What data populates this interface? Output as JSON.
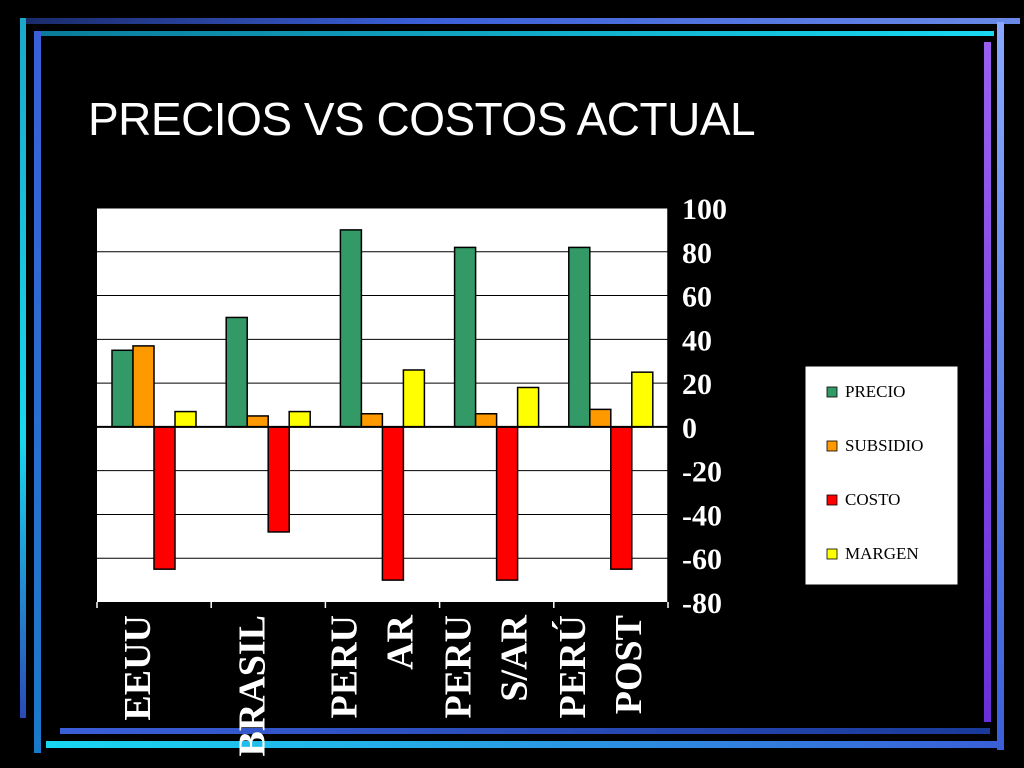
{
  "slide": {
    "title": "PRECIOS VS COSTOS ACTUAL"
  },
  "theme": {
    "background": "#000000",
    "frame_colors": [
      "#3a5fd8",
      "#18d8f0",
      "#8a4fe8",
      "#2a3a9a"
    ],
    "plot_background": "#ffffff",
    "axis_text_color": "#ffffff",
    "legend_background": "#ffffff"
  },
  "chart_data": {
    "type": "bar",
    "categories": [
      "EEUU",
      "BRASIL",
      "PERU AR",
      "PERU S/AR",
      "PERÚ POST"
    ],
    "category_labels": [
      [
        "EEUU"
      ],
      [
        "BRASIL"
      ],
      [
        "PERU",
        "AR"
      ],
      [
        "PERU",
        "S/AR"
      ],
      [
        "PERÚ",
        "POST"
      ]
    ],
    "series": [
      {
        "name": "PRECIO",
        "color": "#339966",
        "values": [
          35,
          50,
          90,
          82,
          82
        ]
      },
      {
        "name": "SUBSIDIO",
        "color": "#ff9900",
        "values": [
          37,
          5,
          6,
          6,
          8
        ]
      },
      {
        "name": "COSTO",
        "color": "#ff0000",
        "values": [
          -65,
          -48,
          -70,
          -70,
          -65
        ]
      },
      {
        "name": "MARGEN",
        "color": "#ffff00",
        "values": [
          7,
          7,
          26,
          18,
          25
        ]
      }
    ],
    "ylim": [
      -80,
      100
    ],
    "yticks": [
      "100",
      "80",
      "60",
      "40",
      "20",
      "0",
      "-20",
      "-40",
      "-60",
      "-80"
    ],
    "grid": true,
    "legend_position": "right"
  }
}
